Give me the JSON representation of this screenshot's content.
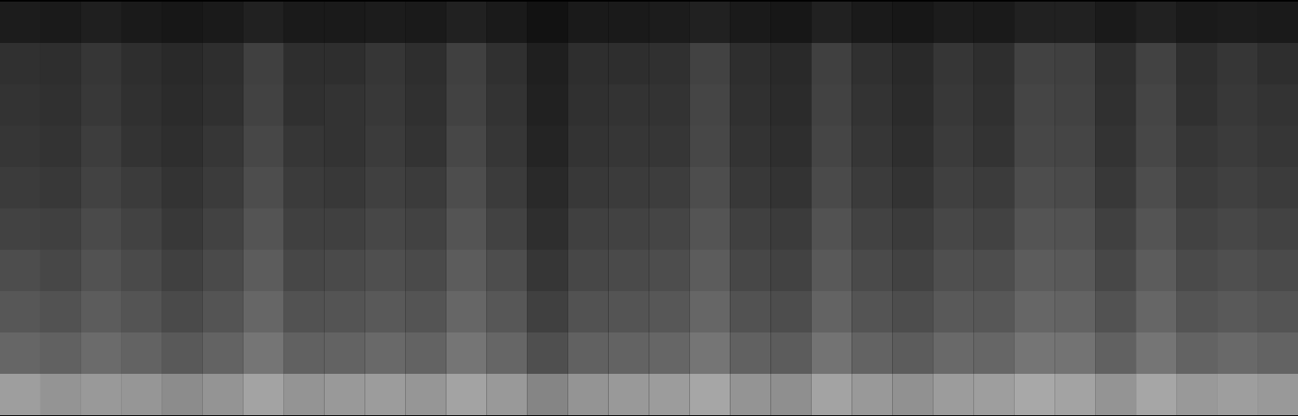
{
  "chart_data": {
    "type": "heatmap",
    "tick_labels": false,
    "zlim": [
      0,
      100
    ],
    "cells": [
      [
        11,
        10,
        12,
        10,
        9,
        10,
        13,
        10,
        10,
        11,
        10,
        13,
        10,
        7,
        10,
        10,
        11,
        13,
        10,
        9,
        13,
        10,
        9,
        11,
        10,
        13,
        13,
        10,
        13,
        10,
        11,
        10
      ],
      [
        19,
        18,
        21,
        18,
        16,
        18,
        25,
        18,
        18,
        21,
        18,
        25,
        19,
        12,
        18,
        18,
        19,
        26,
        18,
        16,
        25,
        19,
        16,
        21,
        18,
        26,
        25,
        18,
        26,
        18,
        21,
        18
      ],
      [
        20,
        19,
        22,
        19,
        17,
        19,
        26,
        19,
        20,
        22,
        19,
        26,
        20,
        13,
        19,
        20,
        20,
        27,
        19,
        17,
        26,
        20,
        17,
        22,
        19,
        27,
        26,
        19,
        27,
        19,
        22,
        20
      ],
      [
        21,
        20,
        24,
        20,
        18,
        21,
        28,
        21,
        20,
        23,
        20,
        28,
        21,
        14,
        20,
        21,
        21,
        28,
        20,
        18,
        27,
        21,
        18,
        23,
        20,
        28,
        27,
        20,
        28,
        21,
        23,
        21
      ],
      [
        23,
        22,
        26,
        23,
        20,
        23,
        30,
        23,
        22,
        25,
        23,
        30,
        23,
        16,
        22,
        23,
        24,
        30,
        22,
        20,
        29,
        23,
        20,
        25,
        23,
        30,
        29,
        22,
        30,
        23,
        25,
        23
      ],
      [
        26,
        25,
        29,
        26,
        22,
        26,
        33,
        25,
        25,
        28,
        26,
        33,
        26,
        18,
        25,
        26,
        27,
        33,
        25,
        23,
        32,
        26,
        23,
        28,
        26,
        33,
        32,
        25,
        33,
        26,
        28,
        26
      ],
      [
        30,
        28,
        32,
        29,
        25,
        29,
        36,
        28,
        29,
        31,
        29,
        36,
        30,
        21,
        28,
        29,
        30,
        36,
        28,
        26,
        35,
        29,
        26,
        31,
        30,
        36,
        35,
        28,
        36,
        29,
        31,
        29
      ],
      [
        34,
        32,
        36,
        33,
        29,
        33,
        40,
        32,
        33,
        35,
        33,
        40,
        34,
        25,
        32,
        33,
        34,
        40,
        32,
        30,
        39,
        33,
        30,
        35,
        34,
        40,
        39,
        32,
        40,
        33,
        35,
        33
      ],
      [
        40,
        38,
        42,
        39,
        35,
        39,
        46,
        38,
        39,
        41,
        39,
        46,
        40,
        31,
        38,
        39,
        40,
        46,
        38,
        36,
        45,
        39,
        36,
        41,
        40,
        46,
        45,
        38,
        46,
        39,
        41,
        39
      ],
      [
        62,
        58,
        60,
        59,
        55,
        58,
        64,
        58,
        60,
        61,
        59,
        64,
        60,
        52,
        58,
        60,
        61,
        65,
        58,
        56,
        64,
        60,
        57,
        61,
        62,
        66,
        64,
        58,
        65,
        60,
        62,
        60
      ]
    ]
  }
}
